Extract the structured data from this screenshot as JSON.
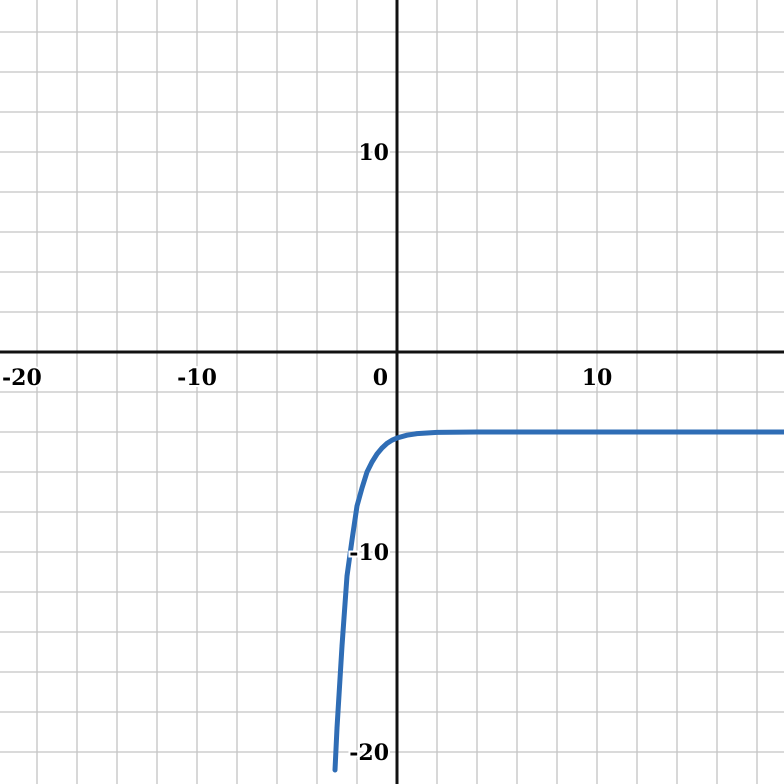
{
  "chart_data": {
    "type": "line",
    "title": "",
    "xlabel": "",
    "ylabel": "",
    "xlim": [
      -19.85,
      19.35
    ],
    "ylim": [
      -21.6,
      17.6
    ],
    "grid": true,
    "grid_step": 2,
    "x_ticks": [
      {
        "value": -20,
        "label": "-20"
      },
      {
        "value": -10,
        "label": "-10"
      },
      {
        "value": 0,
        "label": "0"
      },
      {
        "value": 10,
        "label": "10"
      }
    ],
    "y_ticks": [
      {
        "value": 10,
        "label": "10"
      },
      {
        "value": -10,
        "label": "-10"
      },
      {
        "value": -20,
        "label": "-20"
      }
    ],
    "series": [
      {
        "color": "#2f6db5",
        "x": [
          -3.1,
          -3.0,
          -2.75,
          -2.5,
          -2.25,
          -2.0,
          -1.75,
          -1.5,
          -1.25,
          -1.0,
          -0.75,
          -0.5,
          -0.25,
          0,
          0.5,
          1,
          2,
          4,
          19.6
        ],
        "y": [
          -20.9,
          -18.8,
          -14.7,
          -11.2,
          -9.4,
          -7.7,
          -6.8,
          -6.0,
          -5.5,
          -5.1,
          -4.8,
          -4.57,
          -4.41,
          -4.3,
          -4.16,
          -4.08,
          -4.02,
          -4.0,
          -4.0
        ]
      }
    ]
  }
}
